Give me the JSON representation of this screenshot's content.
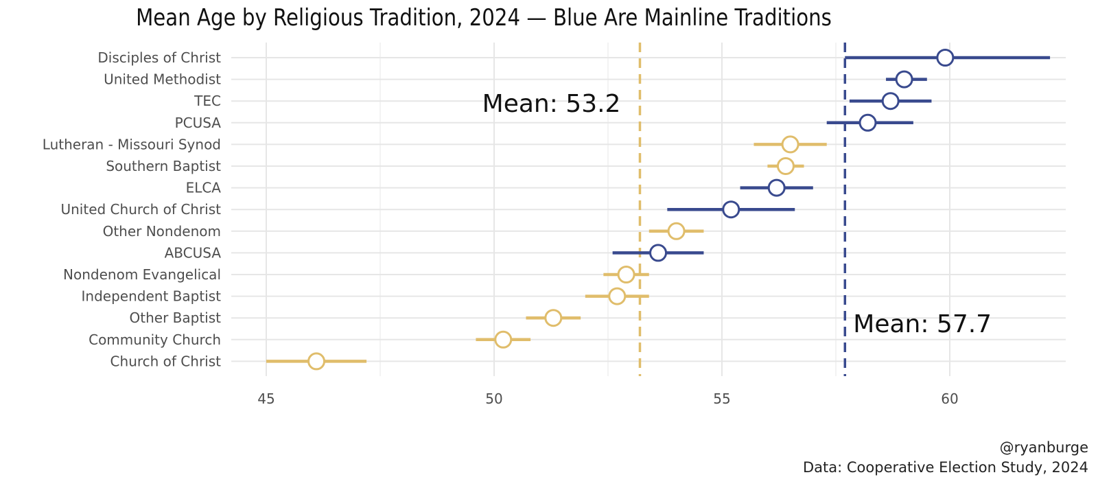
{
  "chart_data": {
    "type": "dot-errorbar",
    "title": "Mean Age by Religious Tradition, 2024 — Blue Are Mainline Traditions",
    "xlim": [
      45,
      62.5
    ],
    "x_ticks": [
      45,
      50,
      55,
      60
    ],
    "grid": true,
    "colors": {
      "mainline": "#394a8e",
      "other": "#e0bd6b"
    },
    "categories": [
      {
        "name": "Disciples of Christ",
        "group": "mainline",
        "mean": 59.9,
        "low": 57.7,
        "high": 62.2
      },
      {
        "name": "United Methodist",
        "group": "mainline",
        "mean": 59.0,
        "low": 58.6,
        "high": 59.5
      },
      {
        "name": "TEC",
        "group": "mainline",
        "mean": 58.7,
        "low": 57.8,
        "high": 59.6
      },
      {
        "name": "PCUSA",
        "group": "mainline",
        "mean": 58.2,
        "low": 57.3,
        "high": 59.2
      },
      {
        "name": "Lutheran - Missouri Synod",
        "group": "other",
        "mean": 56.5,
        "low": 55.7,
        "high": 57.3
      },
      {
        "name": "Southern Baptist",
        "group": "other",
        "mean": 56.4,
        "low": 56.0,
        "high": 56.8
      },
      {
        "name": "ELCA",
        "group": "mainline",
        "mean": 56.2,
        "low": 55.4,
        "high": 57.0
      },
      {
        "name": "United Church of Christ",
        "group": "mainline",
        "mean": 55.2,
        "low": 53.8,
        "high": 56.6
      },
      {
        "name": "Other Nondenom",
        "group": "other",
        "mean": 54.0,
        "low": 53.4,
        "high": 54.6
      },
      {
        "name": "ABCUSA",
        "group": "mainline",
        "mean": 53.6,
        "low": 52.6,
        "high": 54.6
      },
      {
        "name": "Nondenom Evangelical",
        "group": "other",
        "mean": 52.9,
        "low": 52.4,
        "high": 53.4
      },
      {
        "name": "Independent Baptist",
        "group": "other",
        "mean": 52.7,
        "low": 52.0,
        "high": 53.4
      },
      {
        "name": "Other Baptist",
        "group": "other",
        "mean": 51.3,
        "low": 50.7,
        "high": 51.9
      },
      {
        "name": "Community Church",
        "group": "other",
        "mean": 50.2,
        "low": 49.6,
        "high": 50.8
      },
      {
        "name": "Church of Christ",
        "group": "other",
        "mean": 46.1,
        "low": 45.0,
        "high": 47.2
      }
    ],
    "reference_lines": [
      {
        "value": 53.2,
        "group": "other",
        "label": "Mean: 53.2"
      },
      {
        "value": 57.7,
        "group": "mainline",
        "label": "Mean: 57.7"
      }
    ]
  },
  "footer": {
    "credit": "@ryanburge",
    "source": "Data: Cooperative Election Study, 2024"
  }
}
